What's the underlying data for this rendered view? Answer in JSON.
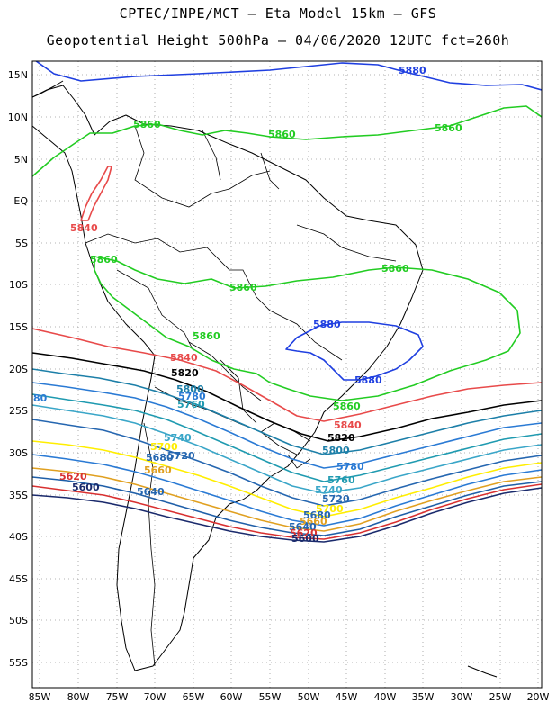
{
  "header": {
    "title": "CPTEC/INPE/MCT –  Eta Model 15km – GFS",
    "subtitle": "Geopotential Height 500hPa – 04/06/2020 12UTC fct=260h"
  },
  "map": {
    "lat_labels": [
      "15N",
      "10N",
      "5N",
      "EQ",
      "5S",
      "10S",
      "15S",
      "20S",
      "25S",
      "30S",
      "35S",
      "40S",
      "45S",
      "50S",
      "55S"
    ],
    "lon_labels": [
      "85W",
      "80W",
      "75W",
      "70W",
      "65W",
      "60W",
      "55W",
      "50W",
      "45W",
      "40W",
      "35W",
      "30W",
      "25W",
      "20W"
    ],
    "colors": {
      "5880": "#1f3fe0",
      "5860": "#22cc22",
      "5840": "#e84a4a",
      "5820": "#000000",
      "5800": "#1c7fa8",
      "5780": "#2a7ad4",
      "5760": "#1f9ab0",
      "5740": "#3aa6c8",
      "5720": "#2566b0",
      "5700": "#ffee00",
      "5680": "#e0a020",
      "5660": "#e0a020",
      "5620": "#d83030",
      "5600": "#1a2a6c"
    },
    "contour_labels": [
      {
        "text": "5880",
        "color": "5880"
      },
      {
        "text": "5860",
        "color": "5860"
      },
      {
        "text": "5860",
        "color": "5860"
      },
      {
        "text": "5860",
        "color": "5860"
      },
      {
        "text": "5840",
        "color": "5840"
      },
      {
        "text": "5860",
        "color": "5860"
      },
      {
        "text": "5860",
        "color": "5860"
      },
      {
        "text": "5860",
        "color": "5860"
      },
      {
        "text": "5860",
        "color": "5860"
      },
      {
        "text": "5860",
        "color": "5860"
      },
      {
        "text": "5880",
        "color": "5880"
      },
      {
        "text": "5880",
        "color": "5880"
      },
      {
        "text": "5840",
        "color": "5840"
      },
      {
        "text": "5820",
        "color": "5820"
      },
      {
        "text": "5800",
        "color": "5800"
      },
      {
        "text": "5780",
        "color": "5780"
      },
      {
        "text": "5760",
        "color": "5760"
      },
      {
        "text": "80",
        "color": "5780"
      },
      {
        "text": "5740",
        "color": "5740"
      },
      {
        "text": "5720",
        "color": "5720"
      },
      {
        "text": "5700",
        "color": "5700"
      },
      {
        "text": "5680",
        "color": "5720"
      },
      {
        "text": "5660",
        "color": "5660"
      },
      {
        "text": "5640",
        "color": "5720"
      },
      {
        "text": "5620",
        "color": "5620"
      },
      {
        "text": "5600",
        "color": "5600"
      },
      {
        "text": "5840",
        "color": "5840"
      },
      {
        "text": "5820",
        "color": "5820"
      },
      {
        "text": "5800",
        "color": "5800"
      },
      {
        "text": "5780",
        "color": "5780"
      },
      {
        "text": "5760",
        "color": "5760"
      },
      {
        "text": "5740",
        "color": "5740"
      },
      {
        "text": "5720",
        "color": "5720"
      },
      {
        "text": "5700",
        "color": "5700"
      },
      {
        "text": "5680",
        "color": "5720"
      },
      {
        "text": "5660",
        "color": "5660"
      },
      {
        "text": "5640",
        "color": "5720"
      },
      {
        "text": "5620",
        "color": "5620"
      },
      {
        "text": "5600",
        "color": "5600"
      }
    ]
  }
}
